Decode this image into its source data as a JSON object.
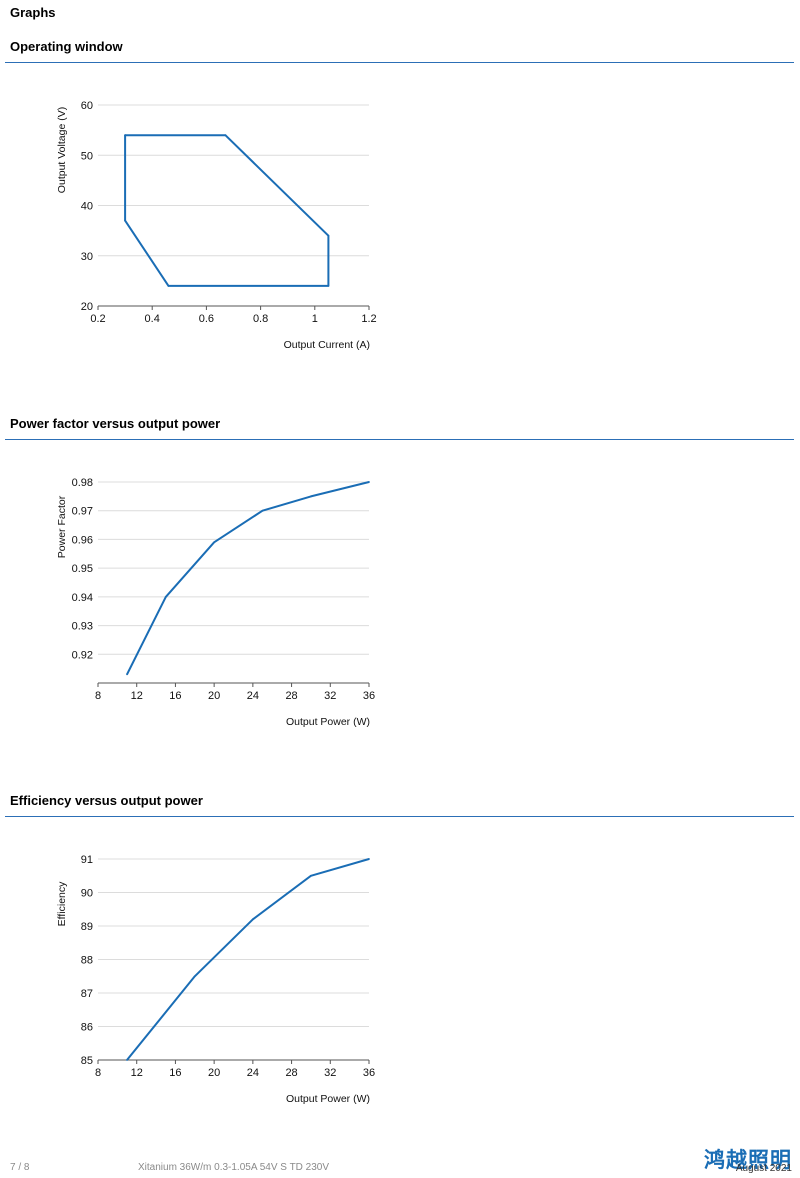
{
  "page": {
    "title": "Graphs",
    "footer_page": "7 / 8",
    "footer_product": "Xitanium 36W/m 0.3-1.05A 54V S TD 230V",
    "footer_date": "August 2021",
    "brand_text": "鸿越照明"
  },
  "colors": {
    "accent": "#1a6db5",
    "rule": "#2c6fb6",
    "grid": "#dcdcdc",
    "axis": "#555555"
  },
  "chart_data": [
    {
      "section_title": "Operating window",
      "type": "line",
      "closed": true,
      "xlabel": "Output Current (A)",
      "ylabel": "Output Voltage (V)",
      "xlim": [
        0.2,
        1.2
      ],
      "ylim": [
        20,
        60
      ],
      "xticks": [
        0.2,
        0.4,
        0.6,
        0.8,
        1,
        1.2
      ],
      "yticks": [
        20,
        30,
        40,
        50,
        60
      ],
      "xtick_labels": [
        "0.2",
        "0.4",
        "0.6",
        "0.8",
        "1",
        "1.2"
      ],
      "ytick_labels": [
        "20",
        "30",
        "40",
        "50",
        "60"
      ],
      "grid": true,
      "x": [
        0.3,
        0.67,
        1.05,
        1.05,
        0.46,
        0.3,
        0.3
      ],
      "y": [
        54,
        54,
        34,
        24,
        24,
        37,
        54
      ]
    },
    {
      "section_title": "Power factor versus output power",
      "type": "line",
      "closed": false,
      "xlabel": "Output Power (W)",
      "ylabel": "Power Factor",
      "xlim": [
        8,
        36
      ],
      "ylim": [
        0.91,
        0.98
      ],
      "xticks": [
        8,
        12,
        16,
        20,
        24,
        28,
        32,
        36
      ],
      "yticks": [
        0.92,
        0.93,
        0.94,
        0.95,
        0.96,
        0.97,
        0.98
      ],
      "xtick_labels": [
        "8",
        "12",
        "16",
        "20",
        "24",
        "28",
        "32",
        "36"
      ],
      "ytick_labels": [
        "0.92",
        "0.93",
        "0.94",
        "0.95",
        "0.96",
        "0.97",
        "0.98"
      ],
      "grid": true,
      "x": [
        11,
        15,
        20,
        25,
        30,
        36
      ],
      "y": [
        0.913,
        0.94,
        0.959,
        0.97,
        0.975,
        0.98
      ]
    },
    {
      "section_title": "Efficiency versus output power",
      "type": "line",
      "closed": false,
      "xlabel": "Output Power (W)",
      "ylabel": "Efficiency",
      "xlim": [
        8,
        36
      ],
      "ylim": [
        85,
        91
      ],
      "xticks": [
        8,
        12,
        16,
        20,
        24,
        28,
        32,
        36
      ],
      "yticks": [
        85,
        86,
        87,
        88,
        89,
        90,
        91
      ],
      "xtick_labels": [
        "8",
        "12",
        "16",
        "20",
        "24",
        "28",
        "32",
        "36"
      ],
      "ytick_labels": [
        "85",
        "86",
        "87",
        "88",
        "89",
        "90",
        "91"
      ],
      "grid": true,
      "x": [
        11,
        18,
        24,
        30,
        36
      ],
      "y": [
        85,
        87.5,
        89.2,
        90.5,
        91
      ]
    }
  ]
}
